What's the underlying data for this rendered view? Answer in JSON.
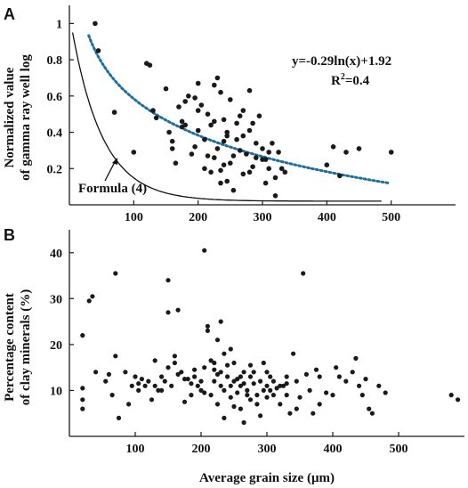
{
  "chart_data": [
    {
      "panel": "A",
      "type": "scatter",
      "ylabel_lines": [
        "Normalized value",
        "of gamma ray well log"
      ],
      "xlabel": "",
      "xlim": [
        0,
        600
      ],
      "ylim": [
        0,
        1.1
      ],
      "xticks": [
        100,
        200,
        300,
        400,
        500
      ],
      "xtick_labels": [
        "100",
        "200",
        "300",
        "400",
        "500"
      ],
      "yticks": [
        0.2,
        0.4,
        0.6,
        0.8,
        1.0
      ],
      "ytick_labels": [
        "0.2",
        "0.4",
        "0.6",
        "0.8",
        "1"
      ],
      "equation": "y=-0.29ln(x)+1.92",
      "r2_prefix": "R",
      "r2_sup": "2",
      "r2_suffix": "=0.4",
      "formula_label": "Formula (4)",
      "trendline": {
        "a": -0.29,
        "b": 1.92,
        "x_range": [
          30,
          500
        ],
        "color": "#1f6f9c",
        "style": "dotted"
      },
      "formula_curve": {
        "x_range": [
          5,
          485
        ],
        "color": "#111111",
        "style": "solid"
      },
      "points": [
        [
          40,
          1.0
        ],
        [
          45,
          0.85
        ],
        [
          70,
          0.51
        ],
        [
          100,
          0.29
        ],
        [
          120,
          0.78
        ],
        [
          125,
          0.77
        ],
        [
          130,
          0.52
        ],
        [
          135,
          0.48
        ],
        [
          150,
          0.64
        ],
        [
          155,
          0.4
        ],
        [
          160,
          0.35
        ],
        [
          165,
          0.23
        ],
        [
          170,
          0.54
        ],
        [
          175,
          0.43
        ],
        [
          175,
          0.46
        ],
        [
          180,
          0.57
        ],
        [
          185,
          0.6
        ],
        [
          190,
          0.28
        ],
        [
          195,
          0.32
        ],
        [
          200,
          0.41
        ],
        [
          200,
          0.67
        ],
        [
          205,
          0.55
        ],
        [
          210,
          0.36
        ],
        [
          210,
          0.2
        ],
        [
          215,
          0.5
        ],
        [
          220,
          0.44
        ],
        [
          220,
          0.18
        ],
        [
          225,
          0.66
        ],
        [
          225,
          0.26
        ],
        [
          230,
          0.7
        ],
        [
          230,
          0.31
        ],
        [
          235,
          0.62
        ],
        [
          235,
          0.12
        ],
        [
          240,
          0.47
        ],
        [
          240,
          0.22
        ],
        [
          245,
          0.38
        ],
        [
          245,
          0.4
        ],
        [
          250,
          0.58
        ],
        [
          250,
          0.23
        ],
        [
          255,
          0.08
        ],
        [
          260,
          0.45
        ],
        [
          260,
          0.36
        ],
        [
          265,
          0.3
        ],
        [
          265,
          0.49
        ],
        [
          270,
          0.52
        ],
        [
          270,
          0.17
        ],
        [
          275,
          0.28
        ],
        [
          280,
          0.63
        ],
        [
          280,
          0.41
        ],
        [
          285,
          0.21
        ],
        [
          290,
          0.34
        ],
        [
          290,
          0.26
        ],
        [
          295,
          0.49
        ],
        [
          300,
          0.31
        ],
        [
          305,
          0.12
        ],
        [
          305,
          0.25
        ],
        [
          310,
          0.2
        ],
        [
          315,
          0.34
        ],
        [
          320,
          0.15
        ],
        [
          325,
          0.29
        ],
        [
          330,
          0.2
        ],
        [
          335,
          0.18
        ],
        [
          400,
          0.22
        ],
        [
          410,
          0.32
        ],
        [
          420,
          0.16
        ],
        [
          430,
          0.29
        ],
        [
          450,
          0.31
        ],
        [
          500,
          0.29
        ],
        [
          320,
          0.05
        ],
        [
          280,
          0.18
        ],
        [
          300,
          0.25
        ],
        [
          240,
          0.35
        ],
        [
          200,
          0.52
        ],
        [
          180,
          0.44
        ],
        [
          160,
          0.31
        ],
        [
          255,
          0.27
        ],
        [
          270,
          0.38
        ],
        [
          225,
          0.46
        ],
        [
          195,
          0.59
        ],
        [
          285,
          0.45
        ],
        [
          310,
          0.29
        ],
        [
          245,
          0.13
        ],
        [
          235,
          0.19
        ],
        [
          215,
          0.27
        ]
      ]
    },
    {
      "panel": "B",
      "type": "scatter",
      "ylabel_lines": [
        "Percentage content",
        "of clay minerals (%)"
      ],
      "xlabel": "Average grain size (μm)",
      "xlim": [
        0,
        600
      ],
      "ylim": [
        0,
        45
      ],
      "xticks": [
        100,
        200,
        300,
        400,
        500
      ],
      "xtick_labels": [
        "100",
        "200",
        "300",
        "400",
        "500"
      ],
      "yticks": [
        10,
        20,
        30,
        40
      ],
      "ytick_labels": [
        "10",
        "20",
        "30",
        "40"
      ],
      "points": [
        [
          20,
          22
        ],
        [
          20,
          8
        ],
        [
          20,
          6
        ],
        [
          20,
          10.5
        ],
        [
          30,
          29.5
        ],
        [
          35,
          30.5
        ],
        [
          40,
          14
        ],
        [
          60,
          13.5
        ],
        [
          65,
          9
        ],
        [
          70,
          35.5
        ],
        [
          70,
          17.5
        ],
        [
          75,
          4
        ],
        [
          90,
          7
        ],
        [
          95,
          11
        ],
        [
          100,
          13
        ],
        [
          105,
          11.5
        ],
        [
          110,
          12.5
        ],
        [
          115,
          11
        ],
        [
          125,
          8
        ],
        [
          130,
          16.5
        ],
        [
          135,
          10
        ],
        [
          140,
          13
        ],
        [
          145,
          12
        ],
        [
          150,
          34
        ],
        [
          150,
          27
        ],
        [
          155,
          11
        ],
        [
          160,
          16
        ],
        [
          165,
          27.5
        ],
        [
          170,
          14
        ],
        [
          175,
          7.5
        ],
        [
          180,
          12.5
        ],
        [
          185,
          9
        ],
        [
          190,
          14.5
        ],
        [
          195,
          11
        ],
        [
          200,
          12
        ],
        [
          205,
          15
        ],
        [
          205,
          40.5
        ],
        [
          210,
          24
        ],
        [
          210,
          23
        ],
        [
          215,
          9
        ],
        [
          220,
          12
        ],
        [
          220,
          16
        ],
        [
          225,
          13.5
        ],
        [
          225,
          21
        ],
        [
          230,
          25
        ],
        [
          230,
          11
        ],
        [
          235,
          10
        ],
        [
          235,
          4
        ],
        [
          240,
          15.5
        ],
        [
          240,
          13
        ],
        [
          245,
          8.5
        ],
        [
          250,
          12
        ],
        [
          250,
          16
        ],
        [
          255,
          9.5
        ],
        [
          260,
          11
        ],
        [
          260,
          6
        ],
        [
          265,
          14
        ],
        [
          265,
          3
        ],
        [
          270,
          10
        ],
        [
          275,
          8
        ],
        [
          275,
          13
        ],
        [
          280,
          11.5
        ],
        [
          285,
          9
        ],
        [
          285,
          7
        ],
        [
          290,
          12
        ],
        [
          295,
          16
        ],
        [
          295,
          10
        ],
        [
          300,
          8.5
        ],
        [
          300,
          11
        ],
        [
          305,
          13
        ],
        [
          310,
          9
        ],
        [
          315,
          10.5
        ],
        [
          320,
          7
        ],
        [
          325,
          11
        ],
        [
          330,
          13
        ],
        [
          330,
          9
        ],
        [
          335,
          5
        ],
        [
          340,
          18
        ],
        [
          345,
          12
        ],
        [
          350,
          8.5
        ],
        [
          355,
          35.5
        ],
        [
          360,
          13.5
        ],
        [
          365,
          10
        ],
        [
          370,
          5
        ],
        [
          375,
          14.5
        ],
        [
          380,
          13
        ],
        [
          390,
          9.5
        ],
        [
          400,
          9
        ],
        [
          405,
          15
        ],
        [
          410,
          13
        ],
        [
          420,
          12
        ],
        [
          430,
          14
        ],
        [
          435,
          17
        ],
        [
          440,
          11
        ],
        [
          445,
          9
        ],
        [
          450,
          12.5
        ],
        [
          455,
          6
        ],
        [
          460,
          5
        ],
        [
          470,
          11
        ],
        [
          480,
          9.5
        ],
        [
          580,
          9
        ],
        [
          590,
          8
        ],
        [
          150,
          15
        ],
        [
          190,
          13
        ],
        [
          245,
          19
        ],
        [
          280,
          14
        ],
        [
          310,
          12
        ],
        [
          130,
          11
        ],
        [
          105,
          10
        ],
        [
          175,
          12.5
        ],
        [
          215,
          16.5
        ],
        [
          265,
          11.5
        ],
        [
          235,
          18
        ],
        [
          200,
          10
        ],
        [
          160,
          17.5
        ],
        [
          320,
          11
        ],
        [
          230,
          14
        ],
        [
          250,
          6.5
        ],
        [
          270,
          9
        ],
        [
          290,
          4.5
        ],
        [
          300,
          14
        ],
        [
          345,
          6
        ],
        [
          380,
          7
        ],
        [
          120,
          12
        ],
        [
          85,
          14
        ],
        [
          55,
          12
        ],
        [
          140,
          10
        ],
        [
          165,
          13.5
        ],
        [
          185,
          11.5
        ],
        [
          205,
          9.5
        ],
        [
          225,
          7
        ],
        [
          245,
          11
        ],
        [
          260,
          13
        ],
        [
          275,
          15.5
        ],
        [
          305,
          10
        ],
        [
          330,
          11.5
        ],
        [
          220,
          14.5
        ],
        [
          255,
          12.5
        ]
      ]
    }
  ],
  "colors": {
    "points": "#1a1a1a",
    "axis": "#1a1a1a",
    "trend": "#1f6f9c"
  }
}
